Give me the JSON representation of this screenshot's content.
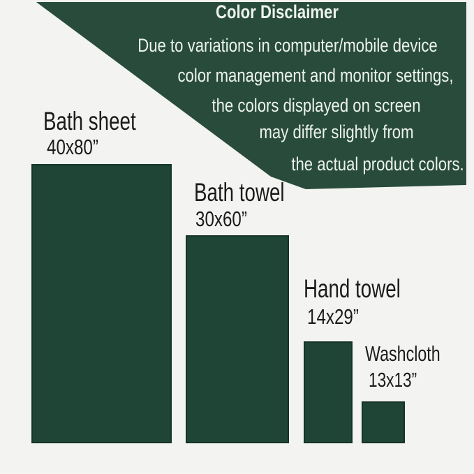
{
  "page": {
    "background_color": "#f3f4f2"
  },
  "banner": {
    "fill_color": "#294b3c",
    "text_color": "#ecf3ee",
    "title": "Color Disclaimer",
    "lines": [
      "Due to variations in computer/mobile device",
      "color management and monitor settings,",
      "the colors displayed on screen",
      "may differ slightly from",
      "the actual product colors."
    ]
  },
  "towel_colors": {
    "fill": "#1e4536",
    "label_text": "#1b1b1b"
  },
  "towels": [
    {
      "name": "Bath sheet",
      "size_label": "40x80”",
      "width_inches": 40,
      "height_inches": 80
    },
    {
      "name": "Bath towel",
      "size_label": "30x60”",
      "width_inches": 30,
      "height_inches": 60
    },
    {
      "name": "Hand towel",
      "size_label": "14x29”",
      "width_inches": 14,
      "height_inches": 29
    },
    {
      "name": "Washcloth",
      "size_label": "13x13”",
      "width_inches": 13,
      "height_inches": 13
    }
  ],
  "scale": {
    "pixels_per_inch": 5
  }
}
